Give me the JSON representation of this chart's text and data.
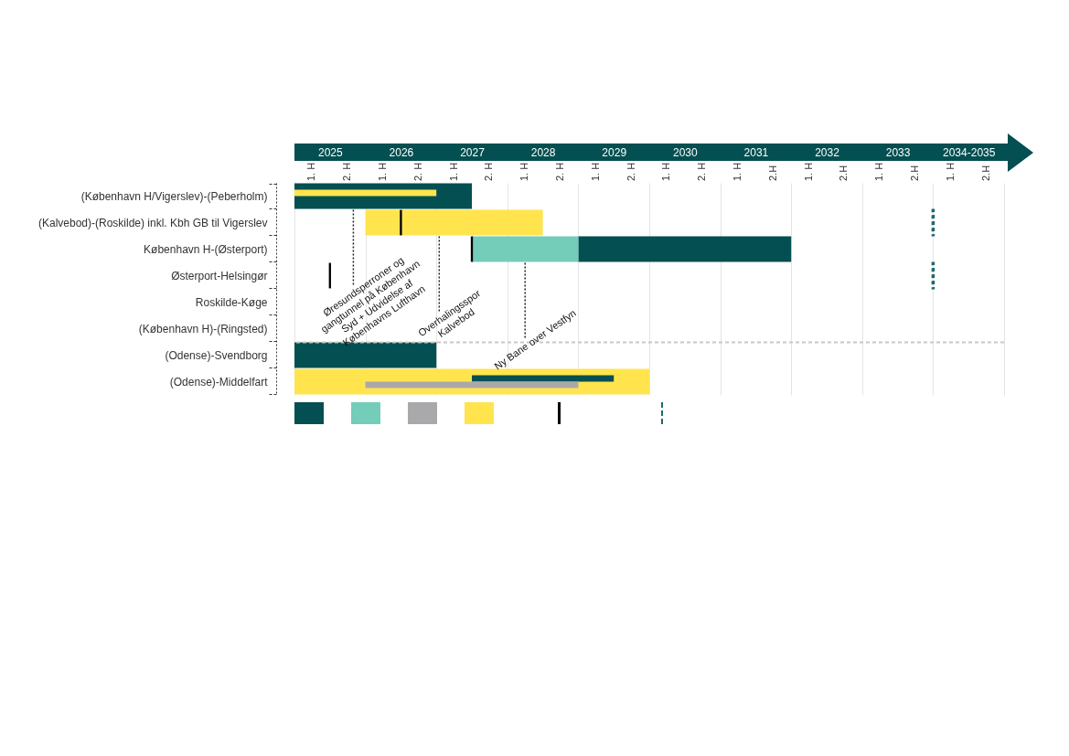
{
  "chart_data": {
    "type": "bar",
    "orientation": "horizontal",
    "categories": [
      "(København H/Vigerslev)-(Peberholm)",
      "(Kalvebod)-(Roskilde) inkl. Kbh GB til Vigerslev",
      "København H-(Østerport)",
      "Østerport-Helsingør",
      "Roskilde-Køge",
      "(København H)-(Ringsted)",
      "(Odense)-Svendborg",
      "(Odense)-Middelfart"
    ],
    "xlim": [
      2024.5,
      2034.5
    ],
    "xticks": [
      {
        "value": 2024.5,
        "label": null
      },
      2025,
      {
        "value": 2025.5,
        "label": null
      },
      2026,
      {
        "value": 2026.5,
        "label": null
      },
      2027,
      {
        "value": 2027.5,
        "label": null
      },
      2028,
      {
        "value": 2028.5,
        "label": null
      },
      2029,
      {
        "value": 2029.5,
        "label": null
      },
      2030,
      {
        "value": 2030.5,
        "label": null
      },
      2031,
      {
        "value": 2031.5,
        "label": null
      },
      2032,
      {
        "value": 2032.5,
        "label": null
      },
      2033,
      {
        "value": 2033.5,
        "label": null
      },
      {
        "value": 2034,
        "label": "2034-2035"
      },
      {
        "value": 2034.5,
        "label": null
      }
    ],
    "annotations": [
      "1. H",
      "2. H",
      "1. H",
      "2. H",
      "1. H",
      "2. H",
      "1. H",
      "2. H",
      "1. H",
      "2. H",
      "1. H",
      "2. H",
      "1. H",
      "2.H",
      "1. H",
      "2.H",
      "1. H",
      "2.H",
      "1. H",
      "2.H"
    ],
    "grid": "x",
    "series": [
      {
        "color": "#034f51",
        "base": [
          2024.5,
          null,
          2028.5,
          null,
          null,
          null,
          2024.5,
          2027
        ],
        "values": [
          2.5,
          null,
          3,
          null,
          null,
          null,
          2,
          2
        ]
      },
      {
        "color": "#73cdb8",
        "base": [
          null,
          null,
          2027,
          null,
          null,
          null,
          null,
          null
        ],
        "values": [
          null,
          null,
          1.5,
          null,
          null,
          null,
          null,
          null
        ]
      },
      {
        "color": "#a9a9ab",
        "base": [
          null,
          null,
          null,
          null,
          null,
          null,
          null,
          2025.5
        ],
        "values": [
          null,
          null,
          null,
          null,
          null,
          null,
          null,
          3
        ]
      },
      {
        "color": "#ffe44d",
        "base": [
          2024.5,
          2025.5,
          null,
          null,
          null,
          null,
          null,
          2024.5
        ],
        "values": [
          2,
          2.5,
          null,
          null,
          null,
          null,
          null,
          5
        ]
      },
      {
        "color": "#000000",
        "base": [
          null,
          2025.985,
          2026.985,
          2024.985,
          null,
          null,
          null,
          null
        ],
        "values": [
          null,
          0.03,
          0.03,
          0.03,
          null,
          null,
          null,
          null
        ]
      },
      {
        "color": "#1d6a6c",
        "line_style": "dashed",
        "base": [
          null,
          2033.49,
          null,
          2033.49,
          null,
          null,
          null,
          null
        ],
        "values": [
          null,
          0.02,
          null,
          0.02,
          null,
          null,
          null,
          null
        ]
      }
    ],
    "ref_lines": [
      {
        "axis": "y",
        "value": "(Odense)-Svendborg",
        "color": "#c8c8c8",
        "line_style": "dashed"
      },
      {
        "axis": "x",
        "value": 2025.33,
        "label": "Øresundsperroner og gangtunnel på København Syd + Udvidelse af Københavns Lufthavn",
        "color": "#222222",
        "line_style": "dotted"
      },
      {
        "axis": "x",
        "value": 2026.54,
        "label": "Overhalingsspor Kalvebod",
        "color": "#222222",
        "line_style": "dotted"
      },
      {
        "axis": "x",
        "value": 2027.75,
        "label": "Ny Bane over Vestfyn",
        "color": "#222222",
        "line_style": "dotted"
      }
    ]
  }
}
